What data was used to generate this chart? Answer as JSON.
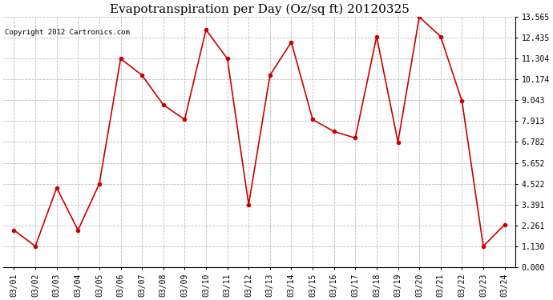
{
  "title": "Evapotranspiration per Day (Oz/sq ft) 20120325",
  "copyright": "Copyright 2012 Cartronics.com",
  "dates": [
    "03/01",
    "03/02",
    "03/03",
    "03/04",
    "03/05",
    "03/06",
    "03/07",
    "03/08",
    "03/09",
    "03/10",
    "03/11",
    "03/12",
    "03/13",
    "03/14",
    "03/15",
    "03/16",
    "03/17",
    "03/18",
    "03/19",
    "03/20",
    "03/21",
    "03/22",
    "03/23",
    "03/24"
  ],
  "values": [
    2.0,
    1.13,
    4.3,
    2.0,
    4.52,
    11.3,
    10.4,
    8.8,
    8.0,
    12.87,
    11.3,
    3.39,
    10.4,
    12.2,
    8.0,
    7.35,
    7.0,
    12.5,
    6.78,
    13.565,
    12.5,
    9.0,
    1.13,
    2.3
  ],
  "line_color": "#cc0000",
  "marker_size": 3,
  "line_width": 1.2,
  "y_ticks": [
    0.0,
    1.13,
    2.261,
    3.391,
    4.522,
    5.652,
    6.782,
    7.913,
    9.043,
    10.174,
    11.304,
    12.435,
    13.565
  ],
  "ylim": [
    0.0,
    13.565
  ],
  "bg_color": "#ffffff",
  "grid_color": "#bbbbbb",
  "title_fontsize": 11,
  "tick_fontsize": 7,
  "copyright_fontsize": 6.5
}
